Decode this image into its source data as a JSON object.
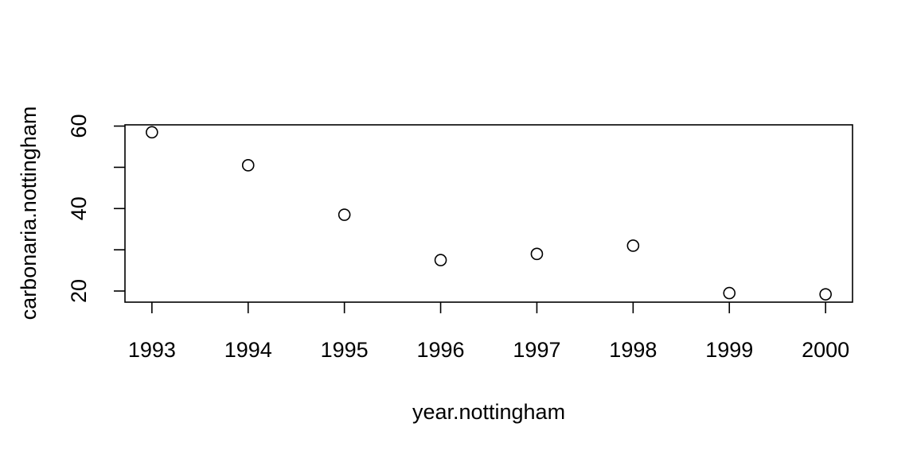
{
  "chart_data": {
    "type": "scatter",
    "title": "",
    "xlabel": "year.nottingham",
    "ylabel": "carbonaria.nottingham",
    "x": [
      1993,
      1994,
      1995,
      1996,
      1997,
      1998,
      1999,
      2000
    ],
    "y": [
      58.5,
      50.5,
      38.5,
      27.5,
      29,
      31,
      19.5,
      19.2
    ],
    "xticks": [
      1993,
      1994,
      1995,
      1996,
      1997,
      1998,
      1999,
      2000
    ],
    "yticks": [
      20,
      40,
      60
    ],
    "xlim": [
      1992.72,
      2000.28
    ],
    "ylim": [
      17.3,
      60.3
    ],
    "grid": false,
    "legend": "none",
    "marker": "open-circle",
    "color": "#000000"
  }
}
